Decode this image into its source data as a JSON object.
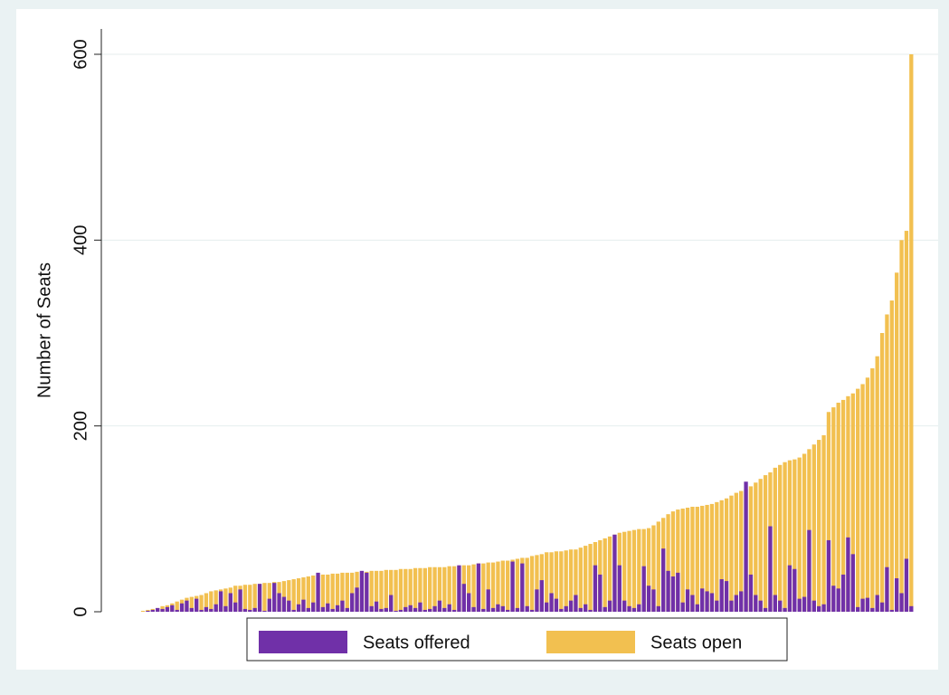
{
  "chart_data": {
    "type": "bar",
    "mode": "overlay",
    "y_label": "Number of Seats",
    "ylim": [
      0,
      600
    ],
    "yticks": [
      0,
      200,
      400,
      600
    ],
    "grid": true,
    "categories": [
      null,
      null,
      null,
      null,
      null,
      null,
      null,
      null,
      null,
      null,
      null,
      null,
      null,
      null,
      null,
      null,
      null,
      null,
      null,
      null,
      null,
      null,
      null,
      null,
      null,
      null,
      null,
      null,
      null,
      null,
      null,
      null,
      null,
      null,
      null,
      null,
      null,
      null,
      null,
      null,
      null,
      null,
      null,
      null,
      null,
      null,
      null,
      null,
      null,
      null,
      null,
      null,
      null,
      null,
      null,
      null,
      null,
      null,
      null,
      null,
      null,
      null,
      null,
      null,
      null,
      null,
      null,
      null,
      null,
      null,
      null,
      null,
      null,
      null,
      null,
      null,
      null,
      null,
      null,
      null,
      null,
      null,
      null,
      null,
      null,
      null,
      null,
      null,
      null,
      null,
      null,
      null,
      null,
      null,
      null,
      null,
      null,
      null,
      null,
      null,
      null,
      null,
      null,
      null,
      null,
      null,
      null,
      null,
      null,
      null,
      null,
      null,
      null,
      null,
      null,
      null,
      null,
      null,
      null,
      null,
      null,
      null,
      null,
      null,
      null,
      null,
      null,
      null,
      null,
      null,
      null,
      null,
      null,
      null,
      null,
      null,
      null,
      null,
      null,
      null,
      null,
      null,
      null,
      null,
      null,
      null,
      null,
      null,
      null,
      null,
      null,
      null,
      null,
      null,
      null,
      null,
      null,
      null,
      null,
      null
    ],
    "series": [
      {
        "name": "Seats open",
        "color": "#f2c050",
        "values": [
          0,
          1,
          2,
          3,
          4,
          6,
          7,
          9,
          11,
          13,
          15,
          16,
          17,
          18,
          20,
          22,
          23,
          24,
          25,
          26,
          28,
          28,
          29,
          29,
          30,
          30,
          31,
          31,
          32,
          32,
          33,
          34,
          35,
          36,
          37,
          38,
          39,
          39,
          40,
          40,
          41,
          41,
          42,
          42,
          42,
          43,
          43,
          43,
          44,
          44,
          44,
          45,
          45,
          45,
          46,
          46,
          46,
          47,
          47,
          47,
          48,
          48,
          48,
          48,
          49,
          49,
          49,
          50,
          50,
          51,
          52,
          52,
          53,
          53,
          54,
          55,
          55,
          56,
          57,
          58,
          58,
          60,
          61,
          62,
          64,
          64,
          65,
          65,
          66,
          67,
          67,
          69,
          71,
          73,
          75,
          77,
          79,
          81,
          83,
          85,
          86,
          87,
          88,
          89,
          89,
          90,
          93,
          97,
          101,
          105,
          108,
          110,
          111,
          112,
          113,
          113,
          114,
          115,
          116,
          118,
          120,
          122,
          125,
          128,
          130,
          132,
          135,
          139,
          143,
          147,
          150,
          155,
          158,
          161,
          163,
          164,
          166,
          170,
          175,
          180,
          185,
          190,
          215,
          220,
          225,
          228,
          232,
          235,
          240,
          245,
          252,
          262,
          275,
          300,
          320,
          335,
          365,
          400,
          410,
          600
        ]
      },
      {
        "name": "Seats offered",
        "color": "#7030a8",
        "values": [
          0,
          0,
          1,
          2,
          4,
          3,
          5,
          7,
          2,
          9,
          12,
          4,
          14,
          2,
          5,
          3,
          8,
          22,
          6,
          20,
          10,
          24,
          3,
          2,
          4,
          30,
          1,
          14,
          31,
          20,
          16,
          12,
          2,
          8,
          13,
          4,
          10,
          42,
          5,
          9,
          3,
          7,
          12,
          4,
          20,
          26,
          44,
          42,
          6,
          11,
          3,
          4,
          18,
          1,
          2,
          5,
          7,
          4,
          10,
          2,
          3,
          6,
          12,
          4,
          8,
          2,
          50,
          30,
          20,
          5,
          52,
          3,
          24,
          4,
          8,
          6,
          2,
          54,
          4,
          52,
          6,
          2,
          24,
          34,
          10,
          20,
          14,
          3,
          6,
          12,
          18,
          4,
          8,
          2,
          50,
          40,
          5,
          12,
          83,
          50,
          12,
          6,
          4,
          8,
          49,
          28,
          24,
          6,
          68,
          44,
          38,
          42,
          10,
          24,
          18,
          8,
          25,
          22,
          20,
          12,
          35,
          33,
          12,
          18,
          22,
          140,
          40,
          18,
          12,
          4,
          92,
          18,
          12,
          4,
          50,
          46,
          14,
          16,
          88,
          12,
          6,
          8,
          77,
          28,
          25,
          40,
          80,
          62,
          5,
          14,
          15,
          4,
          18,
          10,
          48,
          2,
          36,
          20,
          57,
          6
        ]
      }
    ],
    "legend": {
      "order": [
        1,
        0
      ]
    }
  }
}
